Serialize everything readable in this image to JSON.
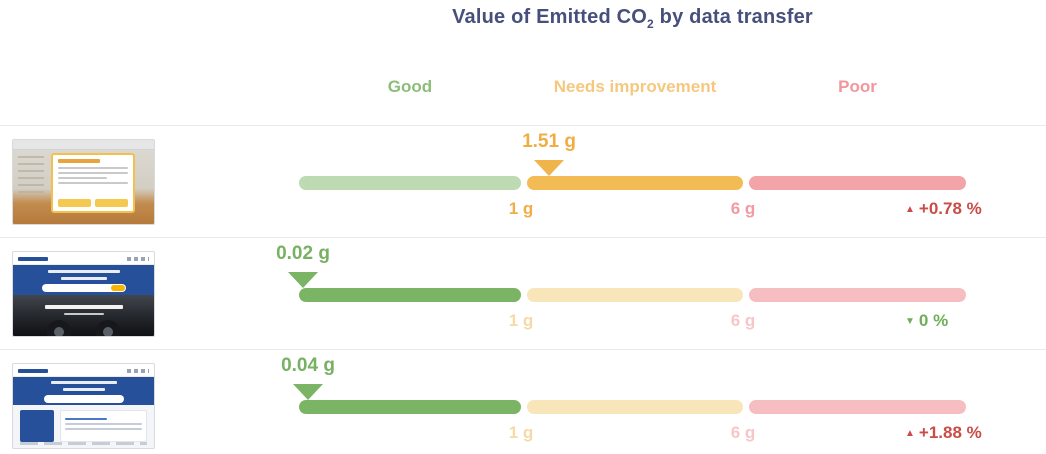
{
  "title": {
    "before_sub": "Value of Emitted CO",
    "sub": "2",
    "after_sub": " by data transfer",
    "color": "#47507c"
  },
  "columns": {
    "good": {
      "label": "Good",
      "color": "#8dbd7b"
    },
    "needs_improvement": {
      "label": "Needs improvement",
      "color": "#f6c87f"
    },
    "poor": {
      "label": "Poor",
      "color": "#f2969c"
    }
  },
  "rows": [
    {
      "value_label": "1.51 g",
      "value_color": "#f0ad42",
      "marker_color": "#f0b44c",
      "seg_good_color": "#bedab2",
      "seg_needs_color": "#f2bb54",
      "seg_poor_color": "#f2a4a9",
      "tick_1_label": "1 g",
      "tick_1_color": "#eeae48",
      "tick_2_label": "6 g",
      "tick_2_color": "#f39aa0",
      "change_arrow": "▲",
      "change_label": "+0.78 %",
      "change_color": "#cb4b47"
    },
    {
      "value_label": "0.02 g",
      "value_color": "#79b163",
      "marker_color": "#7cb465",
      "seg_good_color": "#7cb465",
      "seg_needs_color": "#f8e5b9",
      "seg_poor_color": "#f6bec1",
      "tick_1_label": "1 g",
      "tick_1_color": "#f5d9a8",
      "tick_2_label": "6 g",
      "tick_2_color": "#f8c6c9",
      "change_arrow": "▼",
      "change_label": "0 %",
      "change_color": "#6fae58"
    },
    {
      "value_label": "0.04 g",
      "value_color": "#79b163",
      "marker_color": "#7cb465",
      "seg_good_color": "#7cb465",
      "seg_needs_color": "#f8e5b9",
      "seg_poor_color": "#f6bec1",
      "tick_1_label": "1 g",
      "tick_1_color": "#f5d9a8",
      "tick_2_label": "6 g",
      "tick_2_color": "#f8c6c9",
      "change_arrow": "▲",
      "change_label": "+1.88 %",
      "change_color": "#cb4b47"
    }
  ],
  "chart_data": {
    "type": "bar",
    "subtype": "bullet-gauge-rows",
    "title": "Value of Emitted CO2 by data transfer",
    "unit": "g",
    "categories": [
      "Good",
      "Needs improvement",
      "Poor"
    ],
    "thresholds_g": [
      1,
      6
    ],
    "scale_max_g": 12,
    "legend_position": "top",
    "rows": [
      {
        "page": "page-1",
        "value_g": 1.51,
        "category": "Needs improvement",
        "change_pct": 0.78,
        "trend": "up"
      },
      {
        "page": "page-2",
        "value_g": 0.02,
        "category": "Good",
        "change_pct": 0,
        "trend": "down"
      },
      {
        "page": "page-3",
        "value_g": 0.04,
        "category": "Good",
        "change_pct": 1.88,
        "trend": "up"
      }
    ]
  }
}
